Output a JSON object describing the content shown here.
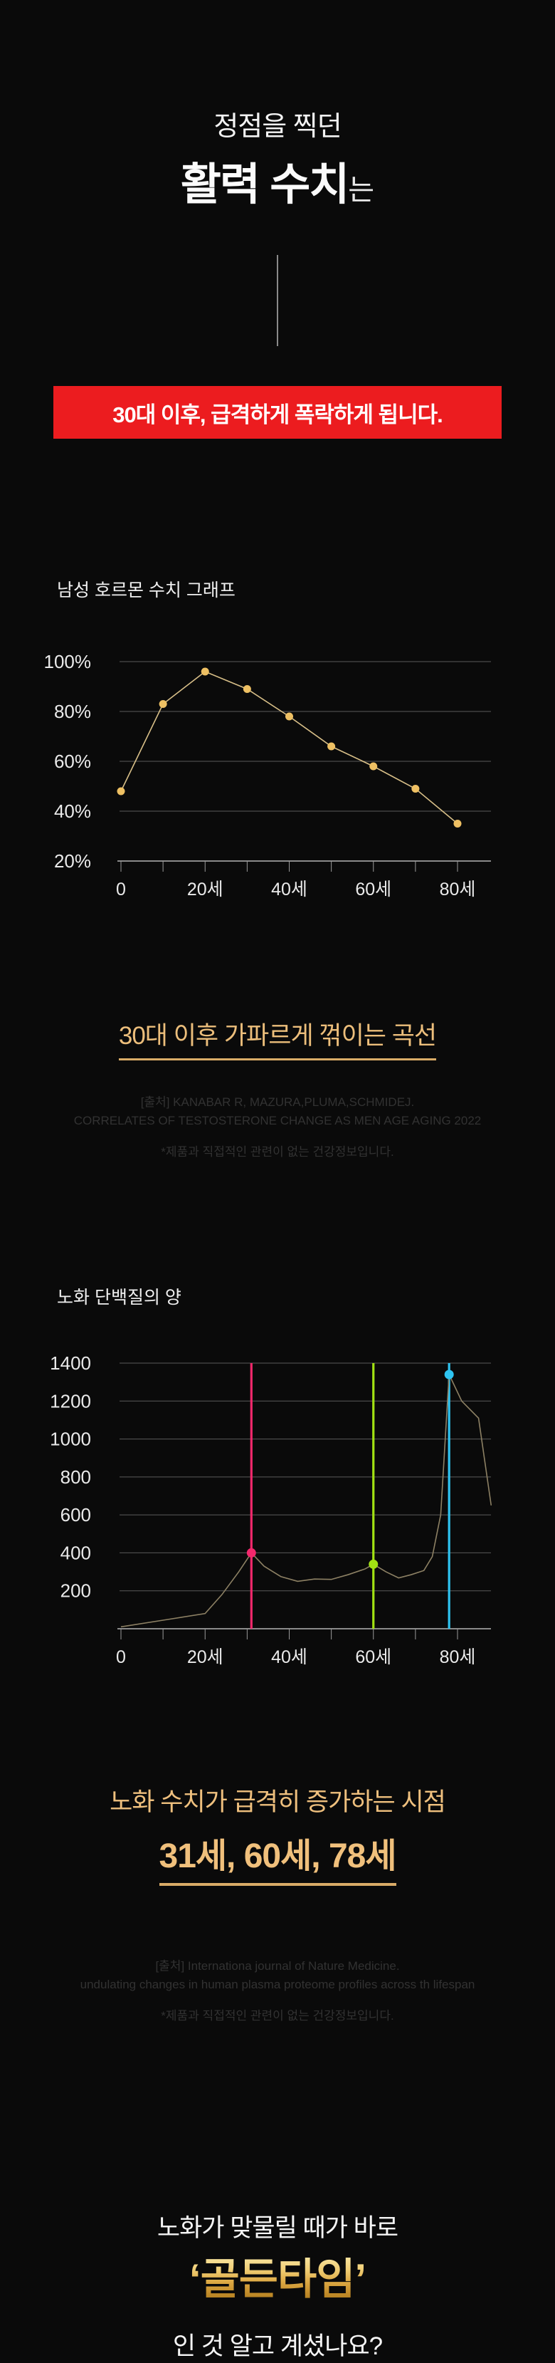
{
  "hero": {
    "line1": "정점을 찍던",
    "line2_strong": "활력 수치",
    "line2_suffix": "는"
  },
  "banner": {
    "text": "30대 이후, 급격하게 폭락하게 됩니다.",
    "bg_color": "#ec1c1f"
  },
  "section1": {
    "heading": "30대 이후 가파르게 꺾이는 곡선",
    "source_line1": "[출처] KANABAR R, MAZURA,PLUMA,SCHMIDEJ.",
    "source_line2": "CORRELATES OF TESTOSTERONE CHANGE AS MEN AGE AGING 2022",
    "disclaimer": "*제품과 직접적인 관련이 없는 건강정보입니다."
  },
  "section2": {
    "heading": "노화 수치가 급격히 증가하는 시점",
    "ages": "31세, 60세, 78세",
    "source_line1": "[출처] Internationa journal of Nature Medicine.",
    "source_line2": "undulating changes in human plasma proteome profiles across th lifespan",
    "disclaimer": "*제품과 직접적인 관련이 없는 건강정보입니다."
  },
  "footer": {
    "line1": "노화가 맞물릴 때가 바로",
    "highlight": "‘골든타임’",
    "line2": "인 것 알고 계셨나요?"
  },
  "colors": {
    "background": "#0a0a0a",
    "gold_text": "#ecbe7b",
    "red_banner": "#ec1c1f",
    "grid": "#9a9a9a",
    "axis": "#b5b5b5"
  },
  "chart_data": [
    {
      "type": "line",
      "title": "남성 호르몬 수치 그래프",
      "x": [
        0,
        10,
        20,
        30,
        40,
        50,
        60,
        70,
        80
      ],
      "values": [
        48,
        83,
        96,
        89,
        78,
        66,
        58,
        49,
        35
      ],
      "x_tick_positions": [
        0,
        20,
        40,
        60,
        80
      ],
      "x_tick_labels": [
        "0",
        "20세",
        "40세",
        "60세",
        "80세"
      ],
      "x_minor_ticks": [
        0,
        10,
        20,
        30,
        40,
        50,
        60,
        70,
        80
      ],
      "y_tick_values": [
        100,
        80,
        60,
        40,
        20
      ],
      "y_tick_labels": [
        "100%",
        "80%",
        "60%",
        "40%",
        "20%"
      ],
      "ylim": [
        20,
        100
      ],
      "xlim": [
        0,
        80
      ],
      "grid": true,
      "legend": null,
      "line_color": "#d8bf88",
      "marker_color": "#eec063"
    },
    {
      "type": "line",
      "title": "노화 단백질의 양",
      "points": [
        [
          0,
          10
        ],
        [
          10,
          45
        ],
        [
          20,
          80
        ],
        [
          24,
          180
        ],
        [
          28,
          300
        ],
        [
          31,
          400
        ],
        [
          34,
          330
        ],
        [
          38,
          275
        ],
        [
          42,
          250
        ],
        [
          46,
          262
        ],
        [
          50,
          260
        ],
        [
          54,
          285
        ],
        [
          58,
          315
        ],
        [
          60,
          340
        ],
        [
          63,
          300
        ],
        [
          66,
          268
        ],
        [
          69,
          285
        ],
        [
          72,
          307
        ],
        [
          74,
          380
        ],
        [
          76,
          600
        ],
        [
          78,
          1340
        ],
        [
          81,
          1200
        ],
        [
          85,
          1110
        ],
        [
          88,
          650
        ]
      ],
      "markers": [
        {
          "x": 31,
          "y": 400,
          "color": "#f2286c",
          "label": "31세"
        },
        {
          "x": 60,
          "y": 340,
          "color": "#a2e213",
          "label": "60세"
        },
        {
          "x": 78,
          "y": 1340,
          "color": "#2ec4f1",
          "label": "78세"
        }
      ],
      "x_tick_positions": [
        0,
        20,
        40,
        60,
        80
      ],
      "x_tick_labels": [
        "0",
        "20세",
        "40세",
        "60세",
        "80세"
      ],
      "x_minor_ticks": [
        0,
        10,
        20,
        30,
        40,
        50,
        60,
        70,
        80
      ],
      "y_tick_values": [
        1400,
        1200,
        1000,
        800,
        600,
        400,
        200
      ],
      "y_tick_labels": [
        "1400",
        "1200",
        "1000",
        "800",
        "600",
        "400",
        "200"
      ],
      "ylim": [
        0,
        1400
      ],
      "xlim": [
        0,
        88
      ],
      "grid": true,
      "legend": null,
      "line_color": "#8d8164"
    }
  ]
}
